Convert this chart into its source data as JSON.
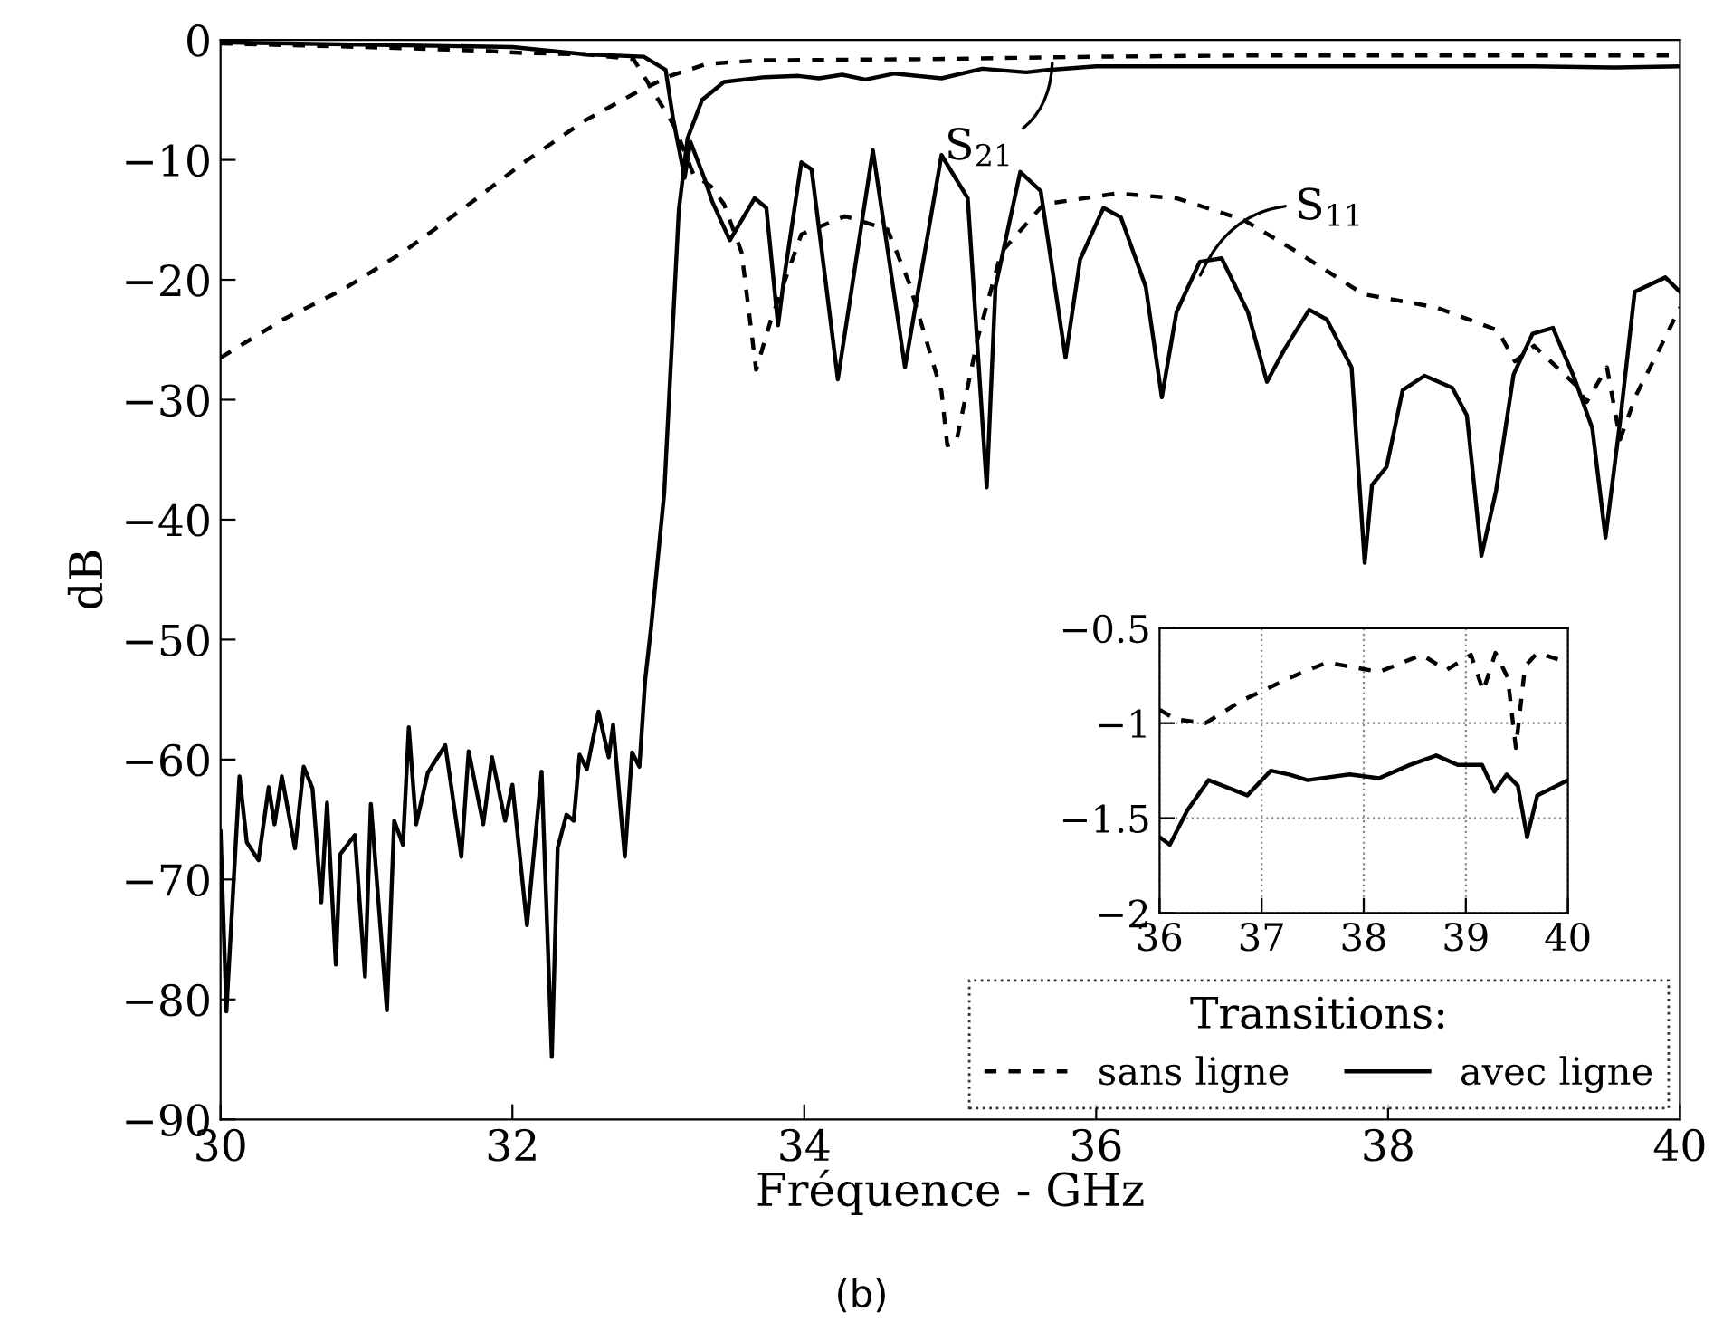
{
  "chart_data": [
    {
      "type": "line",
      "xlabel": "Fréquence - GHz",
      "ylabel": "dB",
      "legend_title": "Transitions:",
      "legend": "bottom right",
      "grid": false,
      "xlim": [
        30,
        40
      ],
      "xticks": [
        30,
        32,
        34,
        36,
        38,
        40
      ],
      "ylim": [
        -90,
        0
      ],
      "yticks": [
        0,
        {
          "value": -10,
          "label": "−10"
        },
        {
          "value": -20,
          "label": "−20"
        },
        {
          "value": -30,
          "label": "−30"
        },
        {
          "value": -40,
          "label": "−40"
        },
        {
          "value": -50,
          "label": "−50"
        },
        {
          "value": -60,
          "label": "−60"
        },
        {
          "value": -70,
          "label": "−70"
        },
        {
          "value": -80,
          "label": "−80"
        },
        {
          "value": -90,
          "label": "−90"
        }
      ],
      "annotations": [
        {
          "text": "S$_{21}$",
          "x": 35.7,
          "y": -1.5
        },
        {
          "text": "S$_{11}$",
          "x": 36.7,
          "y": -20
        },
        "(b)"
      ],
      "series": [
        {
          "name": "sans ligne",
          "color": "#000000",
          "line_style": "dashed",
          "x": [
            30,
            30.43,
            30.84,
            31.25,
            31.67,
            32.08,
            32.5,
            32.83,
            33.08,
            33.33,
            33.7,
            34.86,
            36,
            37,
            38,
            39,
            40
          ],
          "values": [
            -26.5,
            -23.3,
            -20.8,
            -17.7,
            -14,
            -10.2,
            -6.7,
            -4.5,
            -3,
            -2,
            -1.7,
            -1.6,
            -1.4,
            -1.3,
            -1.3,
            -1.3,
            -1.3
          ]
        },
        {
          "name": "avec ligne",
          "color": "#000000",
          "line_style": "solid",
          "x": [
            30,
            30.04,
            30.13,
            30.18,
            30.26,
            30.33,
            30.37,
            30.42,
            30.51,
            30.57,
            30.63,
            30.69,
            30.73,
            30.79,
            30.82,
            30.92,
            30.99,
            31.03,
            31.14,
            31.19,
            31.25,
            31.29,
            31.34,
            31.42,
            31.54,
            31.65,
            31.7,
            31.8,
            31.86,
            31.95,
            32,
            32.1,
            32.2,
            32.27,
            32.31,
            32.37,
            32.42,
            32.46,
            32.51,
            32.59,
            32.66,
            32.69,
            32.77,
            32.82,
            32.87,
            32.91,
            32.95,
            33.04,
            33.14,
            33.2,
            33.3,
            33.45,
            33.73,
            33.96,
            34.1,
            34.26,
            34.42,
            34.62,
            34.94,
            35.22,
            35.52,
            35.67,
            36,
            37,
            38,
            39,
            39.57,
            40
          ],
          "values": [
            -66,
            -81,
            -61.4,
            -66.9,
            -68.4,
            -62.3,
            -65.4,
            -61.4,
            -67.4,
            -60.6,
            -62.4,
            -71.9,
            -63.6,
            -77.1,
            -67.9,
            -66.3,
            -78.1,
            -63.7,
            -80.9,
            -65.1,
            -67.1,
            -57.3,
            -65.4,
            -61.1,
            -58.8,
            -68.1,
            -59.3,
            -65.4,
            -59.8,
            -65.1,
            -62.1,
            -73.8,
            -61,
            -84.8,
            -67.4,
            -64.6,
            -65.1,
            -59.6,
            -60.8,
            -56,
            -59.8,
            -57.1,
            -68.1,
            -59.4,
            -60.6,
            -53.3,
            -49,
            -37.8,
            -14.2,
            -8.2,
            -5,
            -3.5,
            -3.1,
            -3,
            -3.2,
            -2.9,
            -3.3,
            -2.8,
            -3.2,
            -2.4,
            -2.7,
            -2.5,
            -2.2,
            -2.2,
            -2.2,
            -2.2,
            -2.3,
            -2.2
          ]
        },
        {
          "color": "#000000",
          "line_style": "dashed",
          "x": [
            30,
            31,
            31.8,
            32.08,
            32.5,
            32.83,
            33.11,
            33.24,
            33.36,
            33.45,
            33.57,
            33.67,
            33.77,
            33.98,
            34.28,
            34.57,
            34.72,
            34.94,
            34.98,
            35.04,
            35.19,
            35.35,
            35.64,
            36.14,
            36.55,
            37.01,
            37.38,
            37.83,
            38.33,
            38.75,
            38.87,
            39,
            39.28,
            39.36,
            39.5,
            39.59,
            39.7,
            39.9,
            40
          ],
          "values": [
            -0.3,
            -0.6,
            -0.9,
            -1.1,
            -1.2,
            -1.6,
            -7.2,
            -11.2,
            -12.2,
            -13.7,
            -17.7,
            -27.5,
            -23.4,
            -16.2,
            -14.7,
            -15.8,
            -20.3,
            -29.3,
            -33.8,
            -33.6,
            -24.8,
            -17.7,
            -13.7,
            -12.8,
            -13.2,
            -15,
            -17.7,
            -21.2,
            -22.3,
            -24.2,
            -26.8,
            -25.5,
            -28.7,
            -30.2,
            -27.3,
            -33.3,
            -29.6,
            -24.8,
            -22.3
          ]
        },
        {
          "color": "#000000",
          "line_style": "solid",
          "x": [
            30,
            32,
            32.5,
            32.9,
            33.05,
            33.1,
            33.18,
            33.22,
            33.32,
            33.37,
            33.49,
            33.66,
            33.74,
            33.82,
            33.86,
            33.98,
            34.05,
            34.23,
            34.47,
            34.69,
            34.94,
            35.12,
            35.25,
            35.31,
            35.48,
            35.62,
            35.79,
            35.89,
            36.05,
            36.17,
            36.34,
            36.45,
            36.55,
            36.71,
            36.86,
            37.04,
            37.17,
            37.29,
            37.46,
            37.58,
            37.75,
            37.84,
            37.89,
            37.99,
            38.1,
            38.25,
            38.44,
            38.54,
            38.64,
            38.74,
            38.86,
            38.99,
            39.13,
            39.28,
            39.4,
            39.49,
            39.59,
            39.69,
            39.9,
            40
          ],
          "values": [
            -0.2,
            -0.6,
            -1.2,
            -1.4,
            -2.5,
            -6.5,
            -11.5,
            -8.5,
            -11.7,
            -13.5,
            -16.7,
            -13.2,
            -14,
            -23.8,
            -20,
            -10.2,
            -10.8,
            -28.3,
            -9.2,
            -27.3,
            -9.6,
            -13.2,
            -37.3,
            -20.6,
            -11,
            -12.6,
            -26.5,
            -18.3,
            -14,
            -14.8,
            -20.6,
            -29.8,
            -22.7,
            -18.5,
            -18.2,
            -22.7,
            -28.5,
            -25.8,
            -22.5,
            -23.3,
            -27.3,
            -43.6,
            -37.1,
            -35.6,
            -29.2,
            -28,
            -29,
            -31.3,
            -43,
            -37.6,
            -27.9,
            -24.5,
            -24,
            -28.3,
            -32.4,
            -41.5,
            -31.8,
            -21,
            -19.8,
            -21
          ]
        }
      ]
    },
    {
      "type": "line",
      "grid": true,
      "xlim": [
        36,
        40
      ],
      "xticks": [
        36,
        37,
        38,
        39,
        40
      ],
      "ylim": [
        -2,
        -0.5
      ],
      "yticks": [
        {
          "value": -0.5,
          "label": "−0.5"
        },
        {
          "value": -1,
          "label": "−1"
        },
        {
          "value": -1.5,
          "label": "−1.5"
        },
        {
          "value": -2,
          "label": "−2"
        }
      ],
      "series": [
        {
          "color": "#000000",
          "line_style": "dashed",
          "x": [
            36,
            36.16,
            36.45,
            36.81,
            37.28,
            37.64,
            38.15,
            38.57,
            38.81,
            39.05,
            39.17,
            39.29,
            39.41,
            39.49,
            39.58,
            39.7,
            40
          ],
          "values": [
            -0.93,
            -0.98,
            -1,
            -0.88,
            -0.76,
            -0.68,
            -0.73,
            -0.64,
            -0.72,
            -0.64,
            -0.83,
            -0.63,
            -0.76,
            -1.13,
            -0.7,
            -0.63,
            -0.68
          ]
        },
        {
          "color": "#000000",
          "line_style": "solid",
          "x": [
            36,
            36.1,
            36.27,
            36.48,
            36.86,
            37.09,
            37.27,
            37.45,
            37.86,
            38.15,
            38.45,
            38.71,
            38.92,
            39.16,
            39.28,
            39.4,
            39.51,
            39.6,
            39.7,
            40
          ],
          "values": [
            -1.6,
            -1.64,
            -1.46,
            -1.3,
            -1.38,
            -1.25,
            -1.27,
            -1.3,
            -1.27,
            -1.29,
            -1.22,
            -1.17,
            -1.22,
            -1.22,
            -1.36,
            -1.27,
            -1.33,
            -1.6,
            -1.38,
            -1.3
          ]
        }
      ]
    }
  ]
}
